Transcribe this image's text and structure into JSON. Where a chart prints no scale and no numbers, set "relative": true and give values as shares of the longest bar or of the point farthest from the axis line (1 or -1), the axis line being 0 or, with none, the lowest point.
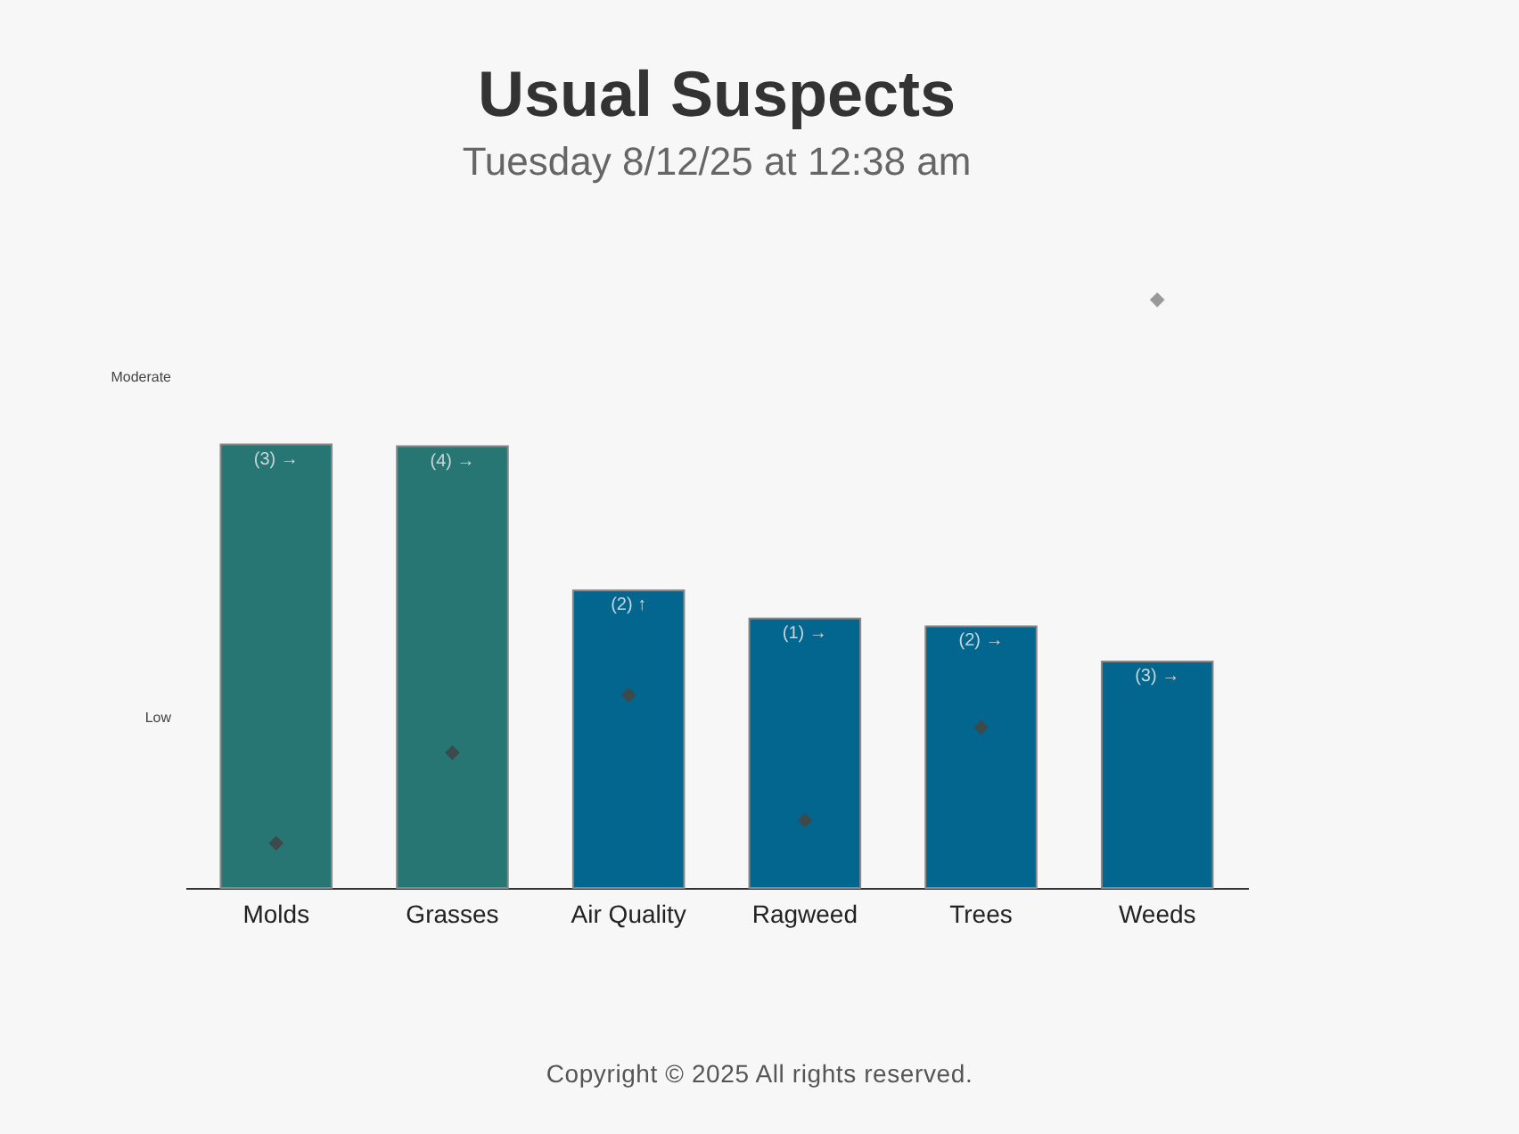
{
  "chart_data": {
    "type": "bar",
    "title": "Usual Suspects",
    "subtitle": "Tuesday 8/12/25 at 12:38 am",
    "relative": true,
    "categories": [
      "Molds",
      "Grasses",
      "Air Quality",
      "Ragweed",
      "Trees",
      "Weeds"
    ],
    "series": [
      {
        "colors": [
          "#287674",
          "#287674",
          "#02668f",
          "#02668f",
          "#02668f",
          "#02668f"
        ],
        "values": [
          0.754,
          0.751,
          0.506,
          0.458,
          0.445,
          0.385
        ]
      },
      {
        "type": "scatter",
        "marker": "diamond",
        "colors": [
          "#3d4a4c",
          "#3d4a4c",
          "#3d4a4c",
          "#3d4a4c",
          "#3d4a4c",
          "#9a9a9a"
        ],
        "values": [
          0.076,
          0.23,
          0.328,
          0.115,
          0.273,
          1
        ]
      }
    ],
    "annotations": [
      {
        "text": "(3) →",
        "x": "Molds",
        "y": 0.754
      },
      {
        "text": "(4) →",
        "x": "Grasses",
        "y": 0.751
      },
      {
        "text": "(2) ↑",
        "x": "Air Quality",
        "y": 0.506
      },
      {
        "text": "(1) →",
        "x": "Ragweed",
        "y": 0.458
      },
      {
        "text": "(2) →",
        "x": "Trees",
        "y": 0.445
      },
      {
        "text": "(3) →",
        "x": "Weeds",
        "y": 0.385
      },
      "Low",
      "Moderate",
      "Copyright © 2025  All rights reserved."
    ]
  }
}
